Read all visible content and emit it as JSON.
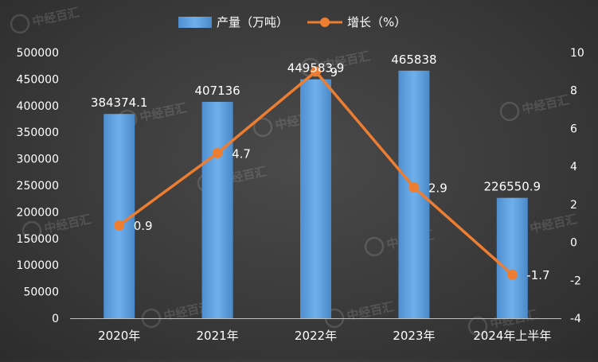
{
  "chart_data": {
    "type": "bar",
    "categories": [
      "2020年",
      "2021年",
      "2022年",
      "2023年",
      "2024年上半年"
    ],
    "series": [
      {
        "name": "产量（万吨）",
        "kind": "bar",
        "axis": "left",
        "color": "#5b9bd5",
        "values": [
          384374.1,
          407136,
          449583.9,
          465838,
          226550.9
        ],
        "labels": [
          "384374.1",
          "407136",
          "449583.9",
          "465838",
          "226550.9"
        ]
      },
      {
        "name": "增长（%）",
        "kind": "line",
        "axis": "right",
        "color": "#ed7d31",
        "values": [
          0.9,
          4.7,
          9,
          2.9,
          -1.7
        ],
        "labels": [
          "0.9",
          "4.7",
          "9",
          "2.9",
          "-1.7"
        ]
      }
    ],
    "y_left": {
      "ylim": [
        0,
        500000
      ],
      "ticks": [
        "0",
        "50000",
        "100000",
        "150000",
        "200000",
        "250000",
        "300000",
        "350000",
        "400000",
        "450000",
        "500000"
      ]
    },
    "y_right": {
      "ylim": [
        -4,
        10
      ],
      "ticks": [
        "-4",
        "-2",
        "0",
        "2",
        "4",
        "6",
        "8",
        "10"
      ]
    },
    "legend": {
      "position": "top"
    },
    "grid": false,
    "watermark": {
      "text": "中经百汇",
      "icon": "zhongjing-logo-icon"
    }
  }
}
